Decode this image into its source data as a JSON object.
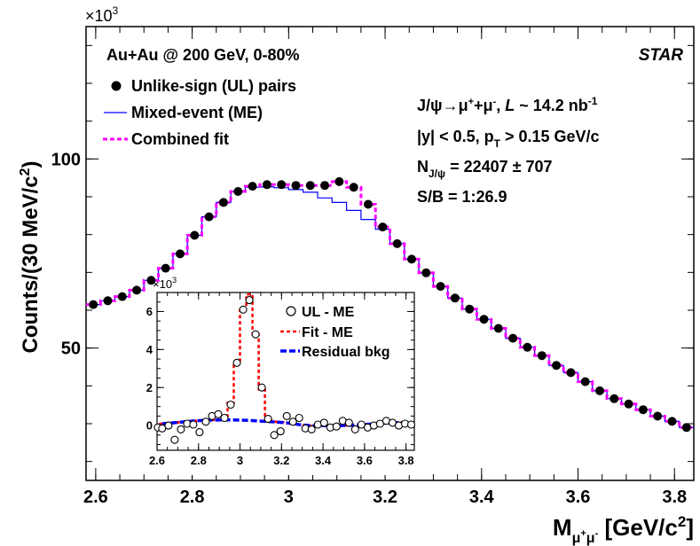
{
  "main": {
    "exponent_label": "×10",
    "exponent_power": "3",
    "ylabel_main": "Counts/(30 MeV/c",
    "ylabel_sup": "2",
    "ylabel_close": ")",
    "xlabel_main": "M",
    "xlabel_sub": "μ",
    "xlabel_subsup1": "+",
    "xlabel_sub2": "μ",
    "xlabel_subsup2": "-",
    "xlabel_units": " [GeV/c",
    "xlabel_units_sup": "2",
    "xlabel_units_close": "]",
    "system_text": "Au+Au @ 200 GeV, 0-80%",
    "experiment": "STAR",
    "legend": [
      {
        "label": "Unlike-sign (UL) pairs",
        "marker": "filled-circle"
      },
      {
        "label": "Mixed-event (ME)",
        "marker": "blue-line"
      },
      {
        "label": "Combined fit",
        "marker": "magenta-dashed-line"
      }
    ],
    "info": {
      "line1_a": "J/ψ→μ",
      "line1_sup1": "+",
      "line1_b": "+μ",
      "line1_sup2": "-",
      "line1_c": ",  ",
      "line1_L": "L",
      "line1_d": " ~ 14.2 nb",
      "line1_sup3": "-1",
      "line2_a": "|y| < 0.5, p",
      "line2_sub": "T",
      "line2_b": " > 0.15 GeV/c",
      "line3_a": "N",
      "line3_sub": "J/ψ",
      "line3_b": " = 22407 ± 707",
      "line4": "S/B = 1:26.9"
    },
    "colors": {
      "ul": "#000000",
      "me": "#0000ff",
      "fit": "#ff00ff"
    }
  },
  "inset": {
    "exponent_label": "×10",
    "exponent_power": "3",
    "legend": [
      {
        "label": "UL - ME",
        "marker": "open-circle"
      },
      {
        "label": "Fit - ME",
        "marker": "red-dashed-line"
      },
      {
        "label": "Residual bkg",
        "marker": "blue-dashed-line"
      }
    ],
    "colors": {
      "fit": "#ff0000",
      "bkg": "#0000ff"
    }
  },
  "chart_data": [
    {
      "type": "scatter",
      "xlim": [
        2.58,
        3.84
      ],
      "ylim": [
        15,
        135
      ],
      "xticks": [
        2.6,
        2.8,
        3.0,
        3.2,
        3.4,
        3.6,
        3.8
      ],
      "xtick_labels": [
        "2.6",
        "2.8",
        "3",
        "3.2",
        "3.4",
        "3.6",
        "3.8"
      ],
      "yticks": [
        50,
        100
      ],
      "ytick_labels": [
        "50",
        "100"
      ],
      "bin_width": 0.03,
      "x": [
        2.595,
        2.625,
        2.655,
        2.685,
        2.715,
        2.745,
        2.775,
        2.805,
        2.835,
        2.865,
        2.895,
        2.925,
        2.955,
        2.985,
        3.015,
        3.045,
        3.075,
        3.105,
        3.135,
        3.165,
        3.195,
        3.225,
        3.255,
        3.285,
        3.315,
        3.345,
        3.375,
        3.405,
        3.435,
        3.465,
        3.495,
        3.525,
        3.555,
        3.585,
        3.615,
        3.645,
        3.675,
        3.705,
        3.735,
        3.765,
        3.795,
        3.825
      ],
      "series": [
        {
          "name": "Unlike-sign (UL) pairs",
          "values": [
            61.5,
            62.5,
            63.6,
            65.3,
            67.9,
            71.1,
            74.9,
            79.8,
            84.7,
            88.5,
            91.4,
            92.8,
            93.2,
            93.2,
            93.0,
            93.0,
            93.0,
            94.0,
            92.5,
            88.0,
            82.0,
            77.6,
            73.5,
            69.9,
            66.3,
            63.2,
            60.3,
            57.6,
            55.2,
            52.6,
            50.2,
            48.0,
            45.4,
            43.5,
            41.1,
            38.7,
            36.6,
            35.2,
            33.7,
            32.0,
            30.6,
            29.0
          ]
        },
        {
          "name": "Mixed-event (ME)",
          "values": [
            61.5,
            62.5,
            63.6,
            65.3,
            67.9,
            71.1,
            74.9,
            79.8,
            84.7,
            88.5,
            91.4,
            92.5,
            92.6,
            92.4,
            91.9,
            91.2,
            89.7,
            88.5,
            86.4,
            84.0,
            81.4,
            77.6,
            73.5,
            69.9,
            66.3,
            63.2,
            60.3,
            57.6,
            55.2,
            52.6,
            50.2,
            48.0,
            45.4,
            43.5,
            41.1,
            38.7,
            36.6,
            35.2,
            33.7,
            32.0,
            30.6,
            29.0
          ]
        },
        {
          "name": "Combined fit",
          "values": [
            61.5,
            62.5,
            63.6,
            65.3,
            67.9,
            71.1,
            74.9,
            79.8,
            84.7,
            88.5,
            91.4,
            92.8,
            93.2,
            93.2,
            93.0,
            93.0,
            93.0,
            94.0,
            92.5,
            88.0,
            82.0,
            77.6,
            73.5,
            69.9,
            66.3,
            63.2,
            60.3,
            57.6,
            55.2,
            52.6,
            50.2,
            48.0,
            45.4,
            43.5,
            41.1,
            38.7,
            36.6,
            35.2,
            33.7,
            32.0,
            30.6,
            29.0
          ]
        }
      ]
    },
    {
      "type": "scatter",
      "xlim": [
        2.6,
        3.84
      ],
      "ylim": [
        -1.3,
        7.0
      ],
      "xticks": [
        2.6,
        2.8,
        3.0,
        3.2,
        3.4,
        3.6,
        3.8
      ],
      "xtick_labels": [
        "2.6",
        "2.8",
        "3",
        "3.2",
        "3.4",
        "3.6",
        "3.8"
      ],
      "yticks": [
        0,
        2,
        4,
        6
      ],
      "ytick_labels": [
        "0",
        "2",
        "4",
        "6"
      ],
      "bin_width": 0.03,
      "x": [
        2.595,
        2.625,
        2.655,
        2.685,
        2.715,
        2.745,
        2.775,
        2.805,
        2.835,
        2.865,
        2.895,
        2.925,
        2.955,
        2.985,
        3.015,
        3.045,
        3.075,
        3.105,
        3.135,
        3.165,
        3.195,
        3.225,
        3.255,
        3.285,
        3.315,
        3.345,
        3.375,
        3.405,
        3.435,
        3.465,
        3.495,
        3.525,
        3.555,
        3.585,
        3.615,
        3.645,
        3.675,
        3.705,
        3.735,
        3.765,
        3.795,
        3.825
      ],
      "series": [
        {
          "name": "UL - ME",
          "values": [
            -0.1,
            -0.15,
            0.0,
            -0.75,
            -0.2,
            0.1,
            0.05,
            -0.35,
            0.2,
            0.5,
            0.6,
            0.4,
            1.1,
            3.3,
            6.1,
            6.6,
            4.8,
            2.0,
            0.35,
            -0.5,
            -0.3,
            0.5,
            0.2,
            0.4,
            -0.15,
            -0.2,
            0.05,
            0.15,
            -0.1,
            -0.05,
            0.25,
            0.15,
            -0.2,
            0.05,
            -0.1,
            0.0,
            0.1,
            0.25,
            0.15,
            0.0,
            0.1,
            0.05
          ]
        },
        {
          "name": "Fit - ME",
          "values": [
            0.05,
            0.1,
            0.12,
            0.15,
            0.18,
            0.21,
            0.24,
            0.26,
            0.28,
            0.29,
            0.29,
            0.3,
            1.2,
            3.3,
            6.2,
            6.9,
            4.8,
            1.9,
            0.3,
            0.2,
            0.17,
            0.14,
            0.1,
            0.05,
            0.02,
            0.0,
            -0.01,
            -0.01,
            -0.01,
            0.0,
            0.0,
            0.01,
            0.03,
            0.05,
            0.07,
            0.09,
            0.11,
            0.13,
            0.14,
            0.16,
            0.17,
            0.18
          ]
        },
        {
          "name": "Residual bkg",
          "values": [
            0.05,
            0.1,
            0.12,
            0.15,
            0.18,
            0.21,
            0.24,
            0.26,
            0.28,
            0.29,
            0.29,
            0.3,
            0.3,
            0.29,
            0.28,
            0.27,
            0.25,
            0.23,
            0.21,
            0.19,
            0.17,
            0.14,
            0.1,
            0.05,
            0.02,
            0.0,
            -0.01,
            -0.01,
            -0.01,
            0.0,
            0.0,
            0.01,
            0.03,
            0.05,
            0.07,
            0.09,
            0.11,
            0.13,
            0.14,
            0.16,
            0.17,
            0.18
          ]
        }
      ]
    }
  ]
}
